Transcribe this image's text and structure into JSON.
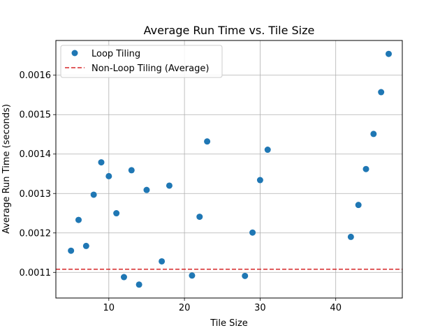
{
  "chart_data": {
    "type": "scatter",
    "title": "Average Run Time vs. Tile Size",
    "xlabel": "Tile Size",
    "ylabel": "Average Run Time (seconds)",
    "xlim": [
      3,
      48.8
    ],
    "ylim": [
      0.001035,
      0.001688
    ],
    "xticks": [
      10,
      20,
      30,
      40
    ],
    "yticks": [
      0.0011,
      0.0012,
      0.0013,
      0.0014,
      0.0015,
      0.0016
    ],
    "ytick_labels": [
      "0.0011",
      "0.0012",
      "0.0013",
      "0.0014",
      "0.0015",
      "0.0016"
    ],
    "xtick_labels": [
      "10",
      "20",
      "30",
      "40"
    ],
    "grid": true,
    "legend_position": "top-left",
    "series": [
      {
        "name": "Loop Tiling",
        "type": "scatter",
        "color": "#1f77b4",
        "points": [
          [
            5,
            0.001155
          ],
          [
            6,
            0.001233
          ],
          [
            7,
            0.001167
          ],
          [
            8,
            0.001297
          ],
          [
            9,
            0.001379
          ],
          [
            10,
            0.001344
          ],
          [
            11,
            0.00125
          ],
          [
            12,
            0.001088
          ],
          [
            13,
            0.001359
          ],
          [
            14,
            0.001069
          ],
          [
            15,
            0.001309
          ],
          [
            17,
            0.001128
          ],
          [
            18,
            0.00132
          ],
          [
            21,
            0.001092
          ],
          [
            22,
            0.001241
          ],
          [
            23,
            0.001432
          ],
          [
            28,
            0.001091
          ],
          [
            29,
            0.001201
          ],
          [
            30,
            0.001334
          ],
          [
            31,
            0.001411
          ],
          [
            42,
            0.00119
          ],
          [
            43,
            0.001271
          ],
          [
            44,
            0.001362
          ],
          [
            45,
            0.001451
          ],
          [
            46,
            0.001557
          ],
          [
            47,
            0.001654
          ]
        ]
      },
      {
        "name": "Non-Loop Tiling (Average)",
        "type": "hline",
        "color": "#d62728",
        "y": 0.001108
      }
    ]
  }
}
